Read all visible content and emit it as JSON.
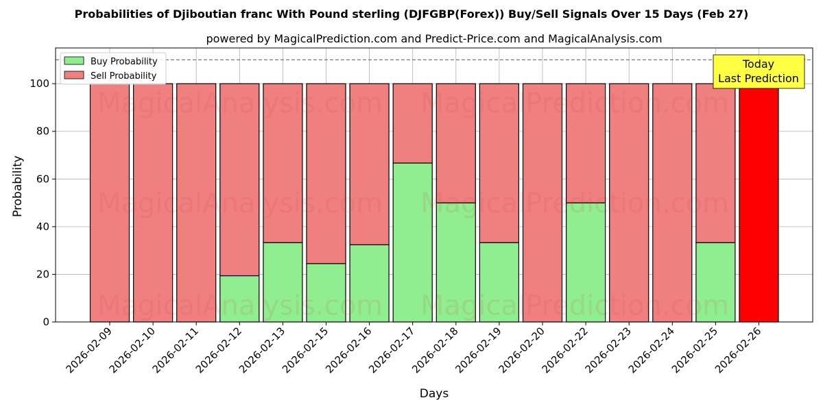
{
  "chart_data": {
    "type": "bar",
    "stacked": true,
    "title": "Probabilities of Djiboutian franc With Pound sterling (DJFGBP(Forex)) Buy/Sell Signals Over 15 Days (Feb 27)",
    "subtitle": "powered by MagicalPrediction.com and Predict-Price.com and MagicalAnalysis.com",
    "xlabel": "Days",
    "ylabel": "Probability",
    "ylim": [
      0,
      115
    ],
    "yticks": [
      0,
      20,
      40,
      60,
      80,
      100
    ],
    "grid": true,
    "legend_position": "top-left",
    "reference_line": 110,
    "categories": [
      "2026-02-09",
      "2026-02-10",
      "2026-02-11",
      "2026-02-12",
      "2026-02-13",
      "2026-02-15",
      "2026-02-16",
      "2026-02-17",
      "2026-02-18",
      "2026-02-19",
      "2026-02-20",
      "2026-02-22",
      "2026-02-23",
      "2026-02-24",
      "2026-02-25",
      "2026-02-26"
    ],
    "series": [
      {
        "name": "Buy Probability",
        "color": "#90ee90",
        "values": [
          0,
          0,
          0,
          19.4,
          33.3,
          24.5,
          32.4,
          66.7,
          50,
          33.3,
          0,
          50,
          0,
          0,
          33.3,
          0
        ]
      },
      {
        "name": "Sell Probability",
        "color": "#f08080",
        "values": [
          100,
          100,
          100,
          80.6,
          66.7,
          75.5,
          67.6,
          33.3,
          50,
          66.7,
          100,
          50,
          100,
          100,
          66.7,
          100
        ]
      }
    ],
    "highlight": {
      "category": "2026-02-26",
      "color": "#ff0000"
    },
    "annotation": {
      "line1": "Today",
      "line2": "Last Prediction",
      "color": "#ffff44"
    },
    "watermarks": [
      "MagicalAnalysis.com",
      "MagicalPrediction.com"
    ]
  }
}
